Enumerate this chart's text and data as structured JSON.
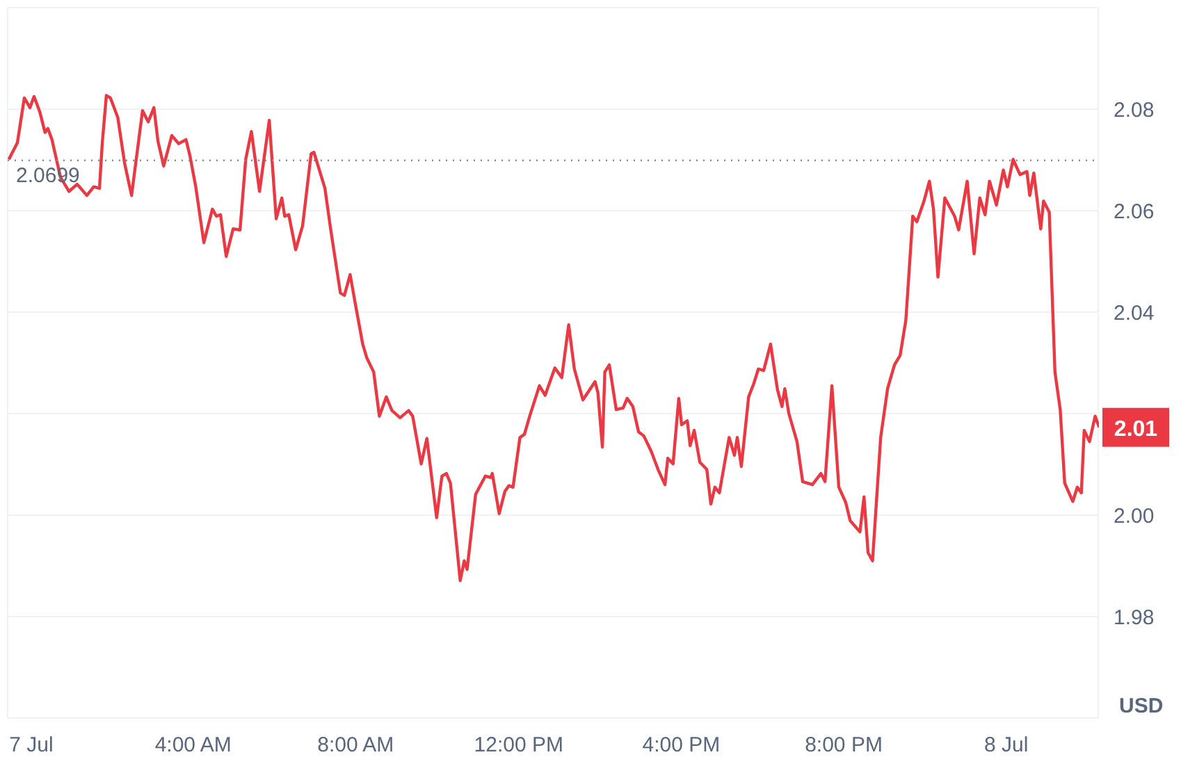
{
  "chart_data": {
    "type": "line",
    "ylabel": "USD",
    "x": [
      -0.55,
      -0.34,
      -0.17,
      -0.03,
      0.07,
      0.21,
      0.34,
      0.41,
      0.51,
      0.72,
      0.93,
      1.13,
      1.37,
      1.54,
      1.68,
      1.75,
      1.85,
      1.95,
      2.13,
      2.3,
      2.47,
      2.74,
      2.88,
      3.02,
      3.12,
      3.26,
      3.46,
      3.63,
      3.81,
      3.91,
      4.05,
      4.25,
      4.46,
      4.56,
      4.66,
      4.8,
      4.97,
      5.14,
      5.28,
      5.42,
      5.62,
      5.86,
      6.03,
      6.17,
      6.24,
      6.34,
      6.51,
      6.68,
      6.89,
      6.96,
      7.23,
      7.37,
      7.61,
      7.71,
      7.85,
      7.99,
      8.16,
      8.26,
      8.43,
      8.57,
      8.74,
      8.88,
      9.08,
      9.29,
      9.39,
      9.6,
      9.74,
      9.98,
      10.11,
      10.22,
      10.32,
      10.56,
      10.66,
      10.73,
      10.94,
      11.18,
      11.31,
      11.35,
      11.52,
      11.66,
      11.76,
      11.86,
      12.03,
      12.14,
      12.27,
      12.51,
      12.65,
      12.89,
      13.06,
      13.23,
      13.37,
      13.58,
      13.88,
      13.95,
      14.06,
      14.12,
      14.23,
      14.4,
      14.57,
      14.67,
      14.81,
      14.95,
      15.08,
      15.26,
      15.43,
      15.6,
      15.67,
      15.8,
      15.94,
      16.01,
      16.15,
      16.22,
      16.32,
      16.46,
      16.63,
      16.73,
      16.83,
      16.94,
      17.18,
      17.31,
      17.38,
      17.48,
      17.66,
      17.79,
      17.9,
      18.03,
      18.2,
      18.37,
      18.48,
      18.55,
      18.65,
      18.85,
      18.99,
      19.23,
      19.44,
      19.54,
      19.71,
      19.88,
      20.05,
      20.16,
      20.4,
      20.5,
      20.6,
      20.71,
      20.91,
      21.08,
      21.25,
      21.39,
      21.53,
      21.7,
      21.8,
      21.97,
      22.11,
      22.21,
      22.32,
      22.49,
      22.73,
      22.83,
      23.04,
      23.21,
      23.35,
      23.48,
      23.59,
      23.76,
      23.93,
      24.03,
      24.17,
      24.34,
      24.51,
      24.58,
      24.68,
      24.85,
      24.92,
      25.06,
      25.2,
      25.33,
      25.44,
      25.64,
      25.75,
      25.85,
      25.92,
      26.05,
      26.19,
      26.29
    ],
    "series": [
      {
        "color": "#ea3943",
        "values": [
          2.0701,
          2.0734,
          2.0822,
          2.0803,
          2.0825,
          2.0795,
          2.0754,
          2.0762,
          2.074,
          2.0666,
          2.0638,
          2.0652,
          2.063,
          2.0647,
          2.0644,
          2.0734,
          2.0827,
          2.0822,
          2.0784,
          2.0693,
          2.063,
          2.0797,
          2.0775,
          2.0803,
          2.0737,
          2.0688,
          2.0748,
          2.0732,
          2.074,
          2.0707,
          2.0647,
          2.0537,
          2.0603,
          2.0589,
          2.0592,
          2.051,
          2.0564,
          2.0562,
          2.0701,
          2.0756,
          2.0638,
          2.0778,
          2.0584,
          2.0625,
          2.0589,
          2.0592,
          2.0523,
          2.057,
          2.0712,
          2.0715,
          2.0644,
          2.0564,
          2.0438,
          2.0433,
          2.0474,
          2.0411,
          2.0337,
          2.031,
          2.0282,
          2.0195,
          2.0233,
          2.0206,
          2.0192,
          2.0206,
          2.0195,
          2.0101,
          2.0151,
          1.9995,
          2.0077,
          2.0082,
          2.0063,
          1.9871,
          1.991,
          1.9893,
          2.0041,
          2.0077,
          2.0074,
          2.0082,
          2.0003,
          2.0047,
          2.0058,
          2.0055,
          2.0153,
          2.0159,
          2.0195,
          2.0255,
          2.0236,
          2.029,
          2.0271,
          2.0375,
          2.0288,
          2.0227,
          2.0263,
          2.0241,
          2.0134,
          2.0282,
          2.0296,
          2.0208,
          2.0211,
          2.023,
          2.0214,
          2.0164,
          2.0156,
          2.0126,
          2.009,
          2.006,
          2.0112,
          2.0101,
          2.023,
          2.0178,
          2.0186,
          2.0137,
          2.0167,
          2.0104,
          2.009,
          2.0022,
          2.0055,
          2.0044,
          2.0153,
          2.0118,
          2.0153,
          2.0096,
          2.0233,
          2.026,
          2.0288,
          2.0285,
          2.0337,
          2.0247,
          2.0214,
          2.0249,
          2.02,
          2.0145,
          2.0066,
          2.006,
          2.0082,
          2.0066,
          2.0255,
          2.0055,
          2.0025,
          1.9989,
          1.9967,
          2.0036,
          1.9926,
          1.991,
          2.0153,
          2.0249,
          2.0296,
          2.0315,
          2.0384,
          2.0589,
          2.0578,
          2.0617,
          2.0658,
          2.0603,
          2.0469,
          2.0625,
          2.0589,
          2.0562,
          2.0658,
          2.0515,
          2.0625,
          2.0592,
          2.0658,
          2.0611,
          2.068,
          2.0647,
          2.0701,
          2.0671,
          2.0677,
          2.063,
          2.0674,
          2.0564,
          2.0619,
          2.0597,
          2.0282,
          2.0208,
          2.0063,
          2.0027,
          2.0055,
          2.0044,
          2.0167,
          2.0145,
          2.0195,
          2.0173
        ]
      }
    ],
    "xlim": [
      -0.58,
      26.3
    ],
    "xticks": [
      {
        "value": 0,
        "label": "7 Jul"
      },
      {
        "value": 4,
        "label": "4:00 AM"
      },
      {
        "value": 8,
        "label": "8:00 AM"
      },
      {
        "value": 12,
        "label": "12:00 PM"
      },
      {
        "value": 16,
        "label": "4:00 PM"
      },
      {
        "value": 20,
        "label": "8:00 PM"
      },
      {
        "value": 24,
        "label": "8 Jul"
      }
    ],
    "ylim": [
      1.96,
      2.1
    ],
    "yticks": [
      {
        "value": 1.98,
        "label": "1.98"
      },
      {
        "value": 2.0,
        "label": "2.00"
      },
      {
        "value": 2.02,
        "label": null
      },
      {
        "value": 2.04,
        "label": "2.04"
      },
      {
        "value": 2.06,
        "label": "2.06"
      },
      {
        "value": 2.08,
        "label": "2.08"
      }
    ],
    "grid": "y",
    "ref_lines": [
      {
        "axis": "y",
        "value": 2.0699,
        "label": "2.0699",
        "color": "#808a9d",
        "line_style": "dotted"
      }
    ],
    "annotations": [
      "2.01"
    ]
  }
}
